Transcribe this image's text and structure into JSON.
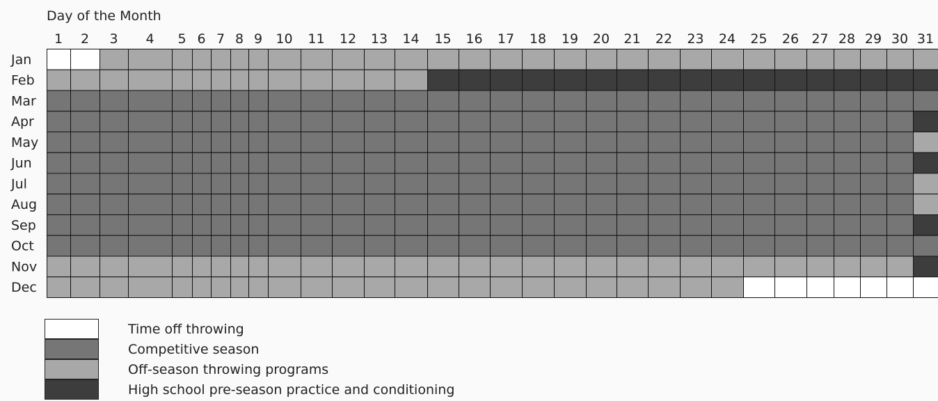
{
  "chart_data": {
    "type": "heatmap",
    "title": "Day of the Month",
    "days": [
      "1",
      "2",
      "3",
      "4",
      "5",
      "6",
      "7",
      "8",
      "9",
      "10",
      "11",
      "12",
      "13",
      "14",
      "15",
      "16",
      "17",
      "18",
      "19",
      "20",
      "21",
      "22",
      "23",
      "24",
      "25",
      "26",
      "27",
      "28",
      "29",
      "30",
      "31"
    ],
    "months": [
      "Jan",
      "Feb",
      "Mar",
      "Apr",
      "May",
      "Jun",
      "Jul",
      "Aug",
      "Sep",
      "Oct",
      "Nov",
      "Dec"
    ],
    "categories": {
      "T": {
        "label": "Time off throwing",
        "color": "#ffffff"
      },
      "C": {
        "label": "Competitive season",
        "color": "#767676"
      },
      "O": {
        "label": "Off-season throwing programs",
        "color": "#a8a8a8"
      },
      "H": {
        "label": "High school pre-season practice and conditioning",
        "color": "#3d3d3d"
      }
    },
    "legend_order": [
      "T",
      "C",
      "O",
      "H"
    ],
    "legend_position": "bottom-left",
    "rows": [
      "TTOOOOOOOOOOOOOOOOOOOOOOOOOOOOO",
      "OOOOOOOOOOOOOOHHHHHHHHHHHHHHHHH",
      "CCCCCCCCCCCCCCCCCCCCCCCCCCCCCCC",
      "CCCCCCCCCCCCCCCCCCCCCCCCCCCCCCH",
      "CCCCCCCCCCCCCCCCCCCCCCCCCCCCCCO",
      "CCCCCCCCCCCCCCCCCCCCCCCCCCCCCCH",
      "CCCCCCCCCCCCCCCCCCCCCCCCCCCCCCO",
      "CCCCCCCCCCCCCCCCCCCCCCCCCCCCCCO",
      "CCCCCCCCCCCCCCCCCCCCCCCCCCCCCCH",
      "CCCCCCCCCCCCCCCCCCCCCCCCCCCCCCC",
      "OOOOOOOOOOOOOOOOOOOOOOOOOOOOOOH",
      "OOOOOOOOOOOOOOOOOOOOOOOOTTTTTTT"
    ]
  }
}
